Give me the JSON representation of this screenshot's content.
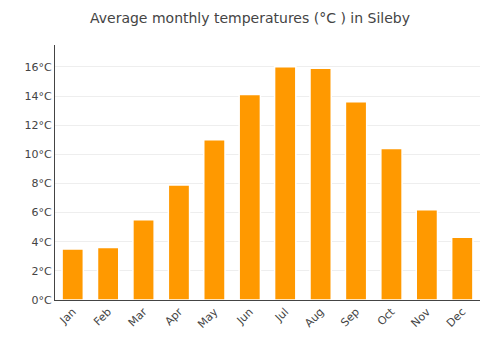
{
  "chart_data": {
    "type": "bar",
    "title": "Average monthly temperatures (°C ) in Sileby",
    "categories": [
      "Jan",
      "Feb",
      "Mar",
      "Apr",
      "May",
      "Jun",
      "Jul",
      "Aug",
      "Sep",
      "Oct",
      "Nov",
      "Dec"
    ],
    "values": [
      3.5,
      3.6,
      5.5,
      7.9,
      11.0,
      14.1,
      16.0,
      15.9,
      13.6,
      10.4,
      6.2,
      4.3
    ],
    "color": "#FF9900",
    "ylim": [
      0,
      17.5
    ],
    "yticks": [
      {
        "value": 0,
        "label": "0°C"
      },
      {
        "value": 2,
        "label": "2°C"
      },
      {
        "value": 4,
        "label": "4°C"
      },
      {
        "value": 6,
        "label": "6°C"
      },
      {
        "value": 8,
        "label": "8°C"
      },
      {
        "value": 10,
        "label": "10°C"
      },
      {
        "value": 12,
        "label": "12°C"
      },
      {
        "value": 14,
        "label": "14°C"
      },
      {
        "value": 16,
        "label": "16°C"
      }
    ],
    "grid": true
  }
}
